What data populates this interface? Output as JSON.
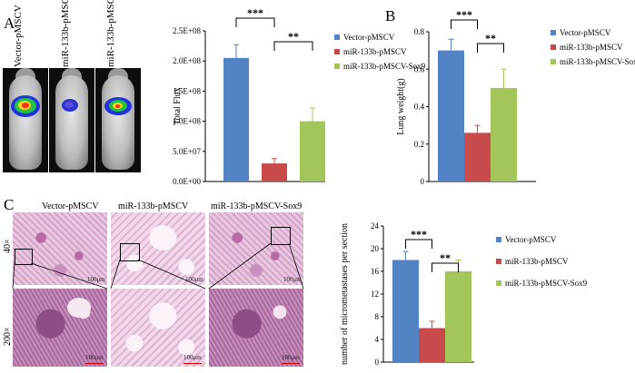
{
  "panels": {
    "a": "A",
    "b": "B",
    "c": "C"
  },
  "mouse_labels": [
    "Vector-pMSCV",
    "miR-133b-pMSCV",
    "miR-133b-pMSCV-Sox9"
  ],
  "histology": {
    "column_titles": [
      "Vector-pMSCV",
      "miR-133b-pMSCV",
      "miR-133b-pMSCV-Sox9"
    ],
    "row_labels": [
      "40×",
      "200×"
    ],
    "scale_label": "100μm"
  },
  "colors": {
    "vector": "#5283C5",
    "mir": "#C94A4A",
    "sox9": "#A3C65A"
  },
  "chart_data": [
    {
      "id": "chart-a",
      "type": "bar",
      "title": "",
      "xlabel": "",
      "ylabel": "Total Flux",
      "ylim": [
        0,
        250000000
      ],
      "yticks": [
        "0.0E+00",
        "5.0E+07",
        "1.0E+08",
        "1.5E+08",
        "2.0E+08",
        "2.5E+08"
      ],
      "categories": [
        "Vector-pMSCV",
        "miR-133b-pMSCV",
        "miR-133b-pMSCV-Sox9"
      ],
      "values": [
        205000000,
        30000000,
        100000000
      ],
      "errors": [
        22000000,
        8000000,
        22000000
      ],
      "legend": [
        "Vector-pMSCV",
        "miR-133b-pMSCV",
        "miR-133b-pMSCV-Sox9"
      ],
      "legend_position": "right",
      "significance": [
        {
          "pair": [
            0,
            1
          ],
          "label": "***"
        },
        {
          "pair": [
            1,
            2
          ],
          "label": "**"
        }
      ]
    },
    {
      "id": "chart-b",
      "type": "bar",
      "title": "",
      "xlabel": "",
      "ylabel": "Lung weight(g)",
      "ylim": [
        0,
        0.8
      ],
      "yticks": [
        "0",
        "0.2",
        "0.4",
        "0.6",
        "0.8"
      ],
      "categories": [
        "Vector-pMSCV",
        "miR-133b-pMSCV",
        "miR-133b-pMSCV-Sox9"
      ],
      "values": [
        0.7,
        0.26,
        0.5
      ],
      "errors": [
        0.06,
        0.04,
        0.1
      ],
      "legend": [
        "Vector-pMSCV",
        "miR-133b-pMSCV",
        "miR-133b-pMSCV-Sox9"
      ],
      "legend_position": "right",
      "significance": [
        {
          "pair": [
            0,
            1
          ],
          "label": "***"
        },
        {
          "pair": [
            1,
            2
          ],
          "label": "**"
        }
      ]
    },
    {
      "id": "chart-c",
      "type": "bar",
      "title": "",
      "xlabel": "",
      "ylabel": "number of micrometastases per section",
      "ylim": [
        0,
        24
      ],
      "yticks": [
        "0",
        "4",
        "8",
        "12",
        "16",
        "20",
        "24"
      ],
      "categories": [
        "Vector-pMSCV",
        "miR-133b-pMSCV",
        "miR-133b-pMSCV-Sox9"
      ],
      "values": [
        18,
        6,
        16
      ],
      "errors": [
        1.5,
        1.2,
        2.0
      ],
      "legend": [
        "Vector-pMSCV",
        "miR-133b-pMSCV",
        "miR-133b-pMSCV-Sox9"
      ],
      "legend_position": "right",
      "significance": [
        {
          "pair": [
            0,
            1
          ],
          "label": "***"
        },
        {
          "pair": [
            1,
            2
          ],
          "label": "**"
        }
      ]
    }
  ]
}
